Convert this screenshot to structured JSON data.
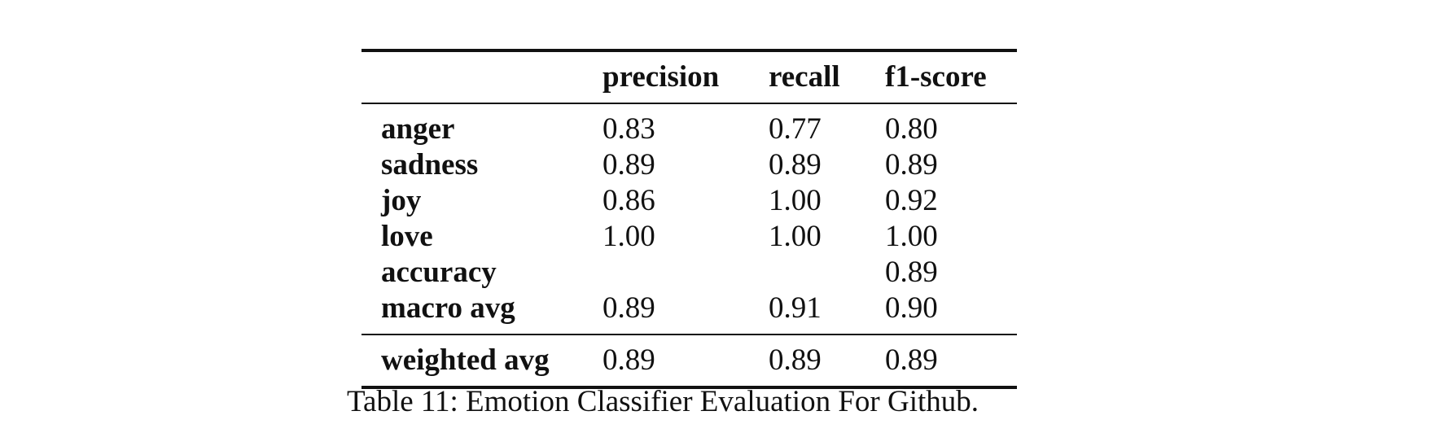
{
  "table": {
    "columns": [
      "",
      "precision",
      "recall",
      "f1-score"
    ],
    "rows": [
      {
        "label": "anger",
        "precision": "0.83",
        "recall": "0.77",
        "f1": "0.80"
      },
      {
        "label": "sadness",
        "precision": "0.89",
        "recall": "0.89",
        "f1": "0.89"
      },
      {
        "label": "joy",
        "precision": "0.86",
        "recall": "1.00",
        "f1": "0.92"
      },
      {
        "label": "love",
        "precision": "1.00",
        "recall": "1.00",
        "f1": "1.00"
      },
      {
        "label": "accuracy",
        "precision": "",
        "recall": "",
        "f1": "0.89"
      },
      {
        "label": "macro avg",
        "precision": "0.89",
        "recall": "0.91",
        "f1": "0.90"
      },
      {
        "label": "weighted avg",
        "precision": "0.89",
        "recall": "0.89",
        "f1": "0.89"
      }
    ]
  },
  "caption": "Table 11: Emotion Classifier Evaluation For Github."
}
